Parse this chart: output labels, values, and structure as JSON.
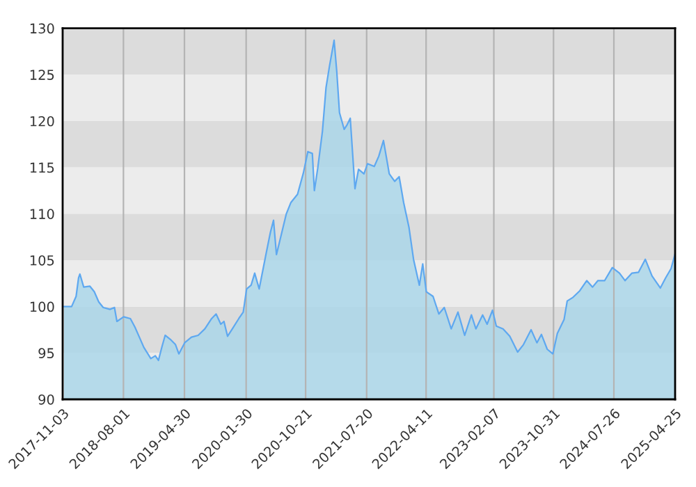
{
  "chart_data": {
    "type": "area",
    "x": [
      "2017-11-09",
      "2017-12-13",
      "2018-01-02",
      "2018-01-13",
      "2018-01-19",
      "2018-02-05",
      "2018-03-04",
      "2018-03-24",
      "2018-04-13",
      "2018-05-03",
      "2018-06-02",
      "2018-06-22",
      "2018-07-03",
      "2018-08-02",
      "2018-09-01",
      "2018-09-21",
      "2018-10-11",
      "2018-10-31",
      "2018-12-01",
      "2018-12-21",
      "2019-01-04",
      "2019-01-20",
      "2019-02-03",
      "2019-03-01",
      "2019-03-21",
      "2019-04-05",
      "2019-05-01",
      "2019-05-31",
      "2019-06-30",
      "2019-07-30",
      "2019-08-29",
      "2019-09-18",
      "2019-10-09",
      "2019-10-23",
      "2019-11-08",
      "2019-12-02",
      "2019-12-28",
      "2020-01-17",
      "2020-02-01",
      "2020-02-21",
      "2020-03-08",
      "2020-03-28",
      "2020-04-27",
      "2020-05-17",
      "2020-05-31",
      "2020-06-13",
      "2020-07-07",
      "2020-07-27",
      "2020-08-16",
      "2020-09-15",
      "2020-10-11",
      "2020-10-31",
      "2020-11-20",
      "2020-11-29",
      "2020-12-14",
      "2021-01-04",
      "2021-01-20",
      "2021-02-05",
      "2021-02-25",
      "2021-03-09",
      "2021-03-21",
      "2021-04-11",
      "2021-04-24",
      "2021-05-08",
      "2021-05-29",
      "2021-06-14",
      "2021-07-08",
      "2021-07-24",
      "2021-08-23",
      "2021-09-12",
      "2021-10-03",
      "2021-10-29",
      "2021-11-22",
      "2021-12-12",
      "2022-01-01",
      "2022-01-25",
      "2022-02-14",
      "2022-03-12",
      "2022-03-27",
      "2022-04-12",
      "2022-05-12",
      "2022-06-07",
      "2022-07-01",
      "2022-08-01",
      "2022-08-31",
      "2022-09-30",
      "2022-10-30",
      "2022-11-19",
      "2022-12-19",
      "2023-01-08",
      "2023-02-01",
      "2023-02-18",
      "2023-03-20",
      "2023-04-19",
      "2023-05-24",
      "2023-06-19",
      "2023-07-23",
      "2023-08-18",
      "2023-09-07",
      "2023-10-03",
      "2023-10-28",
      "2023-11-17",
      "2023-12-17",
      "2023-12-31",
      "2024-01-26",
      "2024-02-25",
      "2024-03-27",
      "2024-04-22",
      "2024-05-16",
      "2024-06-15",
      "2024-07-19",
      "2024-08-20",
      "2024-09-14",
      "2024-10-14",
      "2024-11-13",
      "2024-12-13",
      "2025-01-12",
      "2025-02-18",
      "2025-03-14",
      "2025-04-07",
      "2025-04-25"
    ],
    "series": [
      {
        "color": "#5ea8f0",
        "values": [
          100.0,
          100.0,
          101.1,
          103.1,
          103.5,
          102.1,
          102.2,
          101.6,
          100.5,
          99.9,
          99.7,
          99.9,
          98.4,
          98.9,
          98.7,
          97.8,
          96.7,
          95.6,
          94.4,
          94.7,
          94.2,
          95.7,
          96.9,
          96.4,
          95.9,
          94.9,
          96.1,
          96.7,
          96.9,
          97.6,
          98.7,
          99.2,
          98.1,
          98.4,
          96.8,
          97.7,
          98.7,
          99.4,
          101.9,
          102.3,
          103.6,
          101.9,
          105.6,
          108.0,
          109.3,
          105.6,
          108.0,
          110.0,
          111.2,
          112.1,
          114.4,
          116.7,
          116.5,
          112.5,
          114.9,
          118.9,
          123.6,
          126.0,
          128.7,
          125.3,
          120.9,
          119.1,
          119.6,
          120.3,
          112.7,
          114.8,
          114.3,
          115.4,
          115.1,
          116.2,
          117.9,
          114.3,
          113.5,
          114.0,
          111.2,
          108.5,
          105.1,
          102.3,
          104.6,
          101.6,
          101.1,
          99.2,
          99.9,
          97.6,
          99.4,
          96.9,
          99.1,
          97.6,
          99.1,
          98.1,
          99.6,
          97.9,
          97.6,
          96.8,
          95.1,
          95.9,
          97.5,
          96.1,
          97.0,
          95.4,
          94.9,
          97.1,
          98.6,
          100.6,
          101.0,
          101.7,
          102.8,
          102.1,
          102.8,
          102.8,
          104.2,
          103.6,
          102.8,
          103.6,
          103.7,
          105.1,
          103.3,
          102.0,
          103.1,
          104.1,
          105.7
        ]
      }
    ],
    "xlim": [
      "2017-11-03",
      "2025-04-25"
    ],
    "xticks": [
      "2017-11-03",
      "2018-08-01",
      "2019-04-30",
      "2020-01-30",
      "2020-10-21",
      "2021-07-20",
      "2022-04-11",
      "2023-02-07",
      "2023-10-31",
      "2024-07-26",
      "2025-04-25"
    ],
    "ylim": [
      90,
      130
    ],
    "yticks": [
      90,
      95,
      100,
      105,
      110,
      115,
      120,
      125,
      130
    ],
    "grid": "x",
    "bands": [
      {
        "axis": "y",
        "from": 90,
        "to": 95,
        "color": "#ececec"
      },
      {
        "axis": "y",
        "from": 95,
        "to": 100,
        "color": "#dcdcdc"
      },
      {
        "axis": "y",
        "from": 100,
        "to": 105,
        "color": "#ececec"
      },
      {
        "axis": "y",
        "from": 105,
        "to": 110,
        "color": "#dcdcdc"
      },
      {
        "axis": "y",
        "from": 110,
        "to": 115,
        "color": "#ececec"
      },
      {
        "axis": "y",
        "from": 115,
        "to": 120,
        "color": "#dcdcdc"
      },
      {
        "axis": "y",
        "from": 120,
        "to": 125,
        "color": "#ececec"
      },
      {
        "axis": "y",
        "from": 125,
        "to": 130,
        "color": "#dcdcdc"
      }
    ]
  }
}
